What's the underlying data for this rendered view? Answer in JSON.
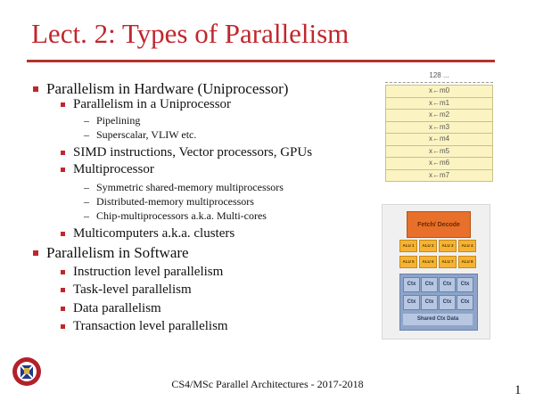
{
  "title": "Lect. 2: Types of Parallelism",
  "bullets": [
    {
      "level": 1,
      "text": "Parallelism in Hardware (Uniprocessor)"
    },
    {
      "level": 2,
      "text": "Parallelism in a Uniprocessor"
    },
    {
      "level": 3,
      "text": "Pipelining"
    },
    {
      "level": 3,
      "text": "Superscalar, VLIW etc."
    },
    {
      "level": 2,
      "text": "SIMD instructions, Vector processors, GPUs"
    },
    {
      "level": 2,
      "text": "Multiprocessor"
    },
    {
      "level": 3,
      "text": "Symmetric shared-memory multiprocessors"
    },
    {
      "level": 3,
      "text": "Distributed-memory multiprocessors"
    },
    {
      "level": 3,
      "text": "Chip-multiprocessors a.k.a. Multi-cores"
    },
    {
      "level": 2,
      "text": "Multicomputers a.k.a. clusters"
    },
    {
      "level": 1,
      "text": "Parallelism in Software"
    },
    {
      "level": 2,
      "text": "Instruction level parallelism"
    },
    {
      "level": 2,
      "text": "Task-level parallelism"
    },
    {
      "level": 2,
      "text": "Data parallelism"
    },
    {
      "level": 2,
      "text": "Transaction level parallelism"
    }
  ],
  "dash": "–",
  "memory_figure": {
    "header": "128 ...",
    "rows": [
      "x←m0",
      "x←m1",
      "x←m2",
      "x←m3",
      "x←m4",
      "x←m5",
      "x←m6",
      "x←m7"
    ]
  },
  "gpu_figure": {
    "fetch_decode": "Fetch/ Decode",
    "alus": [
      "ALU 1",
      "ALU 2",
      "ALU 3",
      "ALU 4",
      "ALU 5",
      "ALU 6",
      "ALU 7",
      "ALU 8"
    ],
    "ctx": [
      "Ctx",
      "Ctx",
      "Ctx",
      "Ctx",
      "Ctx",
      "Ctx",
      "Ctx",
      "Ctx"
    ],
    "shared": "Shared Ctx Data"
  },
  "footer": "CS4/MSc Parallel Architectures - 2017-2018",
  "page_number": "1",
  "colors": {
    "accent": "#c0272d",
    "alu": "#f5b331",
    "fetch": "#e8702a",
    "ctx": "#b7c7e2"
  }
}
